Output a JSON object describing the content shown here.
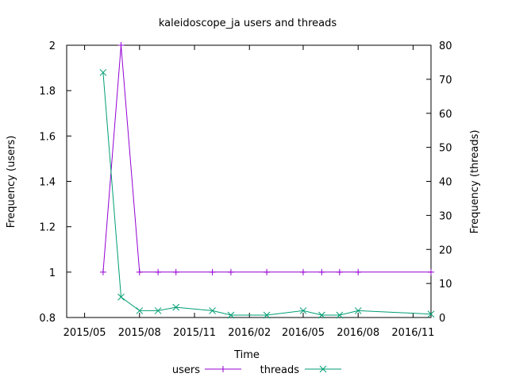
{
  "chart_data": {
    "type": "line",
    "title": "kaleidoscope_ja users and threads",
    "xlabel": "Time",
    "ylabel": "Frequency (users)",
    "y2label": "Frequency (threads)",
    "xlim": [
      "2015-04-01",
      "2016-12-01"
    ],
    "ylim": [
      0.8,
      2.0
    ],
    "y2lim": [
      0,
      80
    ],
    "x_ticks": [
      {
        "date": "2015-05-01",
        "label": "2015/05"
      },
      {
        "date": "2015-08-01",
        "label": "2015/08"
      },
      {
        "date": "2015-11-01",
        "label": "2015/11"
      },
      {
        "date": "2016-02-01",
        "label": "2016/02"
      },
      {
        "date": "2016-05-01",
        "label": "2016/05"
      },
      {
        "date": "2016-08-01",
        "label": "2016/08"
      },
      {
        "date": "2016-11-01",
        "label": "2016/11"
      }
    ],
    "y_ticks": [
      "0.8",
      "1",
      "1.2",
      "1.4",
      "1.6",
      "1.8",
      "2"
    ],
    "y2_ticks": [
      "0",
      "10",
      "20",
      "30",
      "40",
      "50",
      "60",
      "70",
      "80"
    ],
    "legend_position": "bottom-center",
    "grid": false,
    "series": [
      {
        "name": "users",
        "axis": "left",
        "color": "#9400d3",
        "marker": "plus",
        "x": [
          "2015-06-01",
          "2015-07-01",
          "2015-08-01",
          "2015-09-01",
          "2015-10-01",
          "2015-12-01",
          "2016-01-01",
          "2016-03-01",
          "2016-05-01",
          "2016-06-01",
          "2016-07-01",
          "2016-08-01",
          "2016-12-01"
        ],
        "values": [
          1,
          2,
          1,
          1,
          1,
          1,
          1,
          1,
          1,
          1,
          1,
          1,
          1
        ]
      },
      {
        "name": "threads",
        "axis": "right",
        "color": "#009e73",
        "marker": "x",
        "x": [
          "2015-06-01",
          "2015-07-01",
          "2015-08-01",
          "2015-09-01",
          "2015-10-01",
          "2015-12-01",
          "2016-01-01",
          "2016-03-01",
          "2016-05-01",
          "2016-06-01",
          "2016-07-01",
          "2016-08-01",
          "2016-12-01"
        ],
        "values": [
          72,
          6,
          2,
          2,
          3,
          2,
          0.7,
          0.7,
          2,
          0.7,
          0.7,
          2,
          1
        ]
      }
    ]
  }
}
